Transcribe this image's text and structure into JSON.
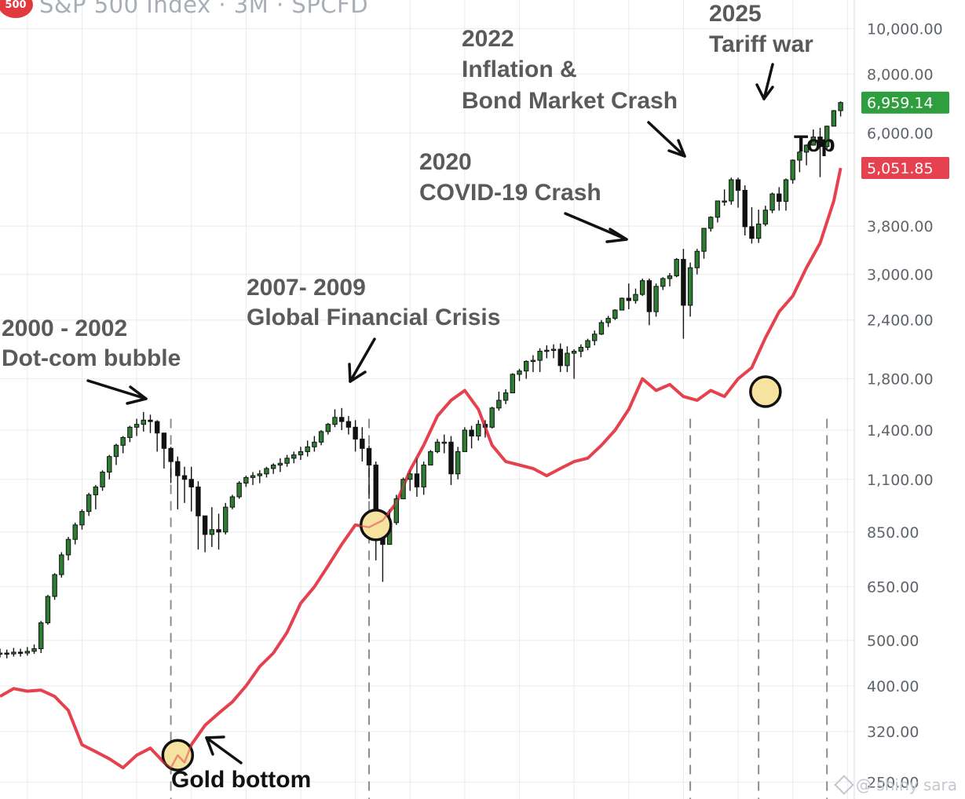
{
  "header": {
    "logo_text": "500",
    "title": "S&P 500 Index · 3M · SPCFD"
  },
  "watermark": "@ shiny sara",
  "colors": {
    "up": "#2e7d32",
    "down": "#111111",
    "gold": "#e5414e",
    "grid": "#e9ebee",
    "axis_text": "#5f646b",
    "annotation_text": "#5a5a5a",
    "price_badge": "#2e9e3e",
    "gold_badge": "#e5414e",
    "circle_fill": "#f7e3a0"
  },
  "annotations": {
    "dotcom": {
      "line1": "2000 - 2002",
      "line2": "Dot-com bubble"
    },
    "gfc": {
      "line1": "2007- 2009",
      "line2": "Global Financial Crisis"
    },
    "covid": {
      "line1": "2020",
      "line2": "COVID-19 Crash"
    },
    "inflation": {
      "line1": "2022",
      "line2": "Inflation &",
      "line3": "Bond Market Crash"
    },
    "tariff": {
      "line1": "2025",
      "line2": "Tariff war"
    },
    "top": "Top",
    "gold_bottom": "Gold bottom"
  },
  "chart_data": {
    "type": "line",
    "title": "S&P 500 Index · 3M · SPCFD",
    "xlabel": "",
    "ylabel": "",
    "y_scale": "log",
    "ylim": [
      230,
      11500
    ],
    "y_ticks": [
      10000,
      8000,
      6000,
      3800,
      3000,
      2400,
      1800,
      1400,
      1100,
      850,
      650,
      500,
      400,
      320,
      250
    ],
    "y_tick_labels": [
      "10,000.00",
      "8,000.00",
      "6,000.00",
      "3,800.00",
      "3,000.00",
      "2,400.00",
      "1,800.00",
      "1,400.00",
      "1,100.00",
      "850.00",
      "650.00",
      "500.00",
      "400.00",
      "320.00",
      "250.00"
    ],
    "last_values": {
      "sp500": "6,959.14",
      "gold_ratio": "5,051.85"
    },
    "grid": true,
    "series": [
      {
        "style": "candlestick",
        "x": [
          1995.0,
          1995.25,
          1995.5,
          1995.75,
          1996.0,
          1996.25,
          1996.5,
          1996.75,
          1997.0,
          1997.25,
          1997.5,
          1997.75,
          1998.0,
          1998.25,
          1998.5,
          1998.75,
          1999.0,
          1999.25,
          1999.5,
          1999.75,
          2000.0,
          2000.25,
          2000.5,
          2000.75,
          2001.0,
          2001.25,
          2001.5,
          2001.75,
          2002.0,
          2002.25,
          2002.5,
          2002.75,
          2003.0,
          2003.25,
          2003.5,
          2003.75,
          2004.0,
          2004.25,
          2004.5,
          2004.75,
          2005.0,
          2005.25,
          2005.5,
          2005.75,
          2006.0,
          2006.25,
          2006.5,
          2006.75,
          2007.0,
          2007.25,
          2007.5,
          2007.75,
          2008.0,
          2008.25,
          2008.5,
          2008.75,
          2009.0,
          2009.25,
          2009.5,
          2009.75,
          2010.0,
          2010.25,
          2010.5,
          2010.75,
          2011.0,
          2011.25,
          2011.5,
          2011.75,
          2012.0,
          2012.25,
          2012.5,
          2012.75,
          2013.0,
          2013.25,
          2013.5,
          2013.75,
          2014.0,
          2014.25,
          2014.5,
          2014.75,
          2015.0,
          2015.25,
          2015.5,
          2015.75,
          2016.0,
          2016.25,
          2016.5,
          2016.75,
          2017.0,
          2017.25,
          2017.5,
          2017.75,
          2018.0,
          2018.25,
          2018.5,
          2018.75,
          2019.0,
          2019.25,
          2019.5,
          2019.75,
          2020.0,
          2020.25,
          2020.5,
          2020.75,
          2021.0,
          2021.25,
          2021.5,
          2021.75,
          2022.0,
          2022.25,
          2022.5,
          2022.75,
          2023.0,
          2023.25,
          2023.5,
          2023.75,
          2024.0,
          2024.25,
          2024.5,
          2024.75,
          2025.0,
          2025.25,
          2025.5,
          2025.75
        ],
        "close": [
          470,
          468,
          472,
          470,
          474,
          480,
          545,
          620,
          690,
          760,
          820,
          880,
          940,
          1020,
          1060,
          1140,
          1230,
          1300,
          1350,
          1420,
          1440,
          1470,
          1460,
          1380,
          1280,
          1200,
          1120,
          1100,
          1060,
          920,
          840,
          860,
          850,
          960,
          1010,
          1080,
          1110,
          1120,
          1130,
          1160,
          1180,
          1190,
          1220,
          1240,
          1260,
          1290,
          1320,
          1390,
          1440,
          1490,
          1460,
          1420,
          1340,
          1280,
          1180,
          900,
          800,
          890,
          1000,
          1100,
          1130,
          1060,
          1180,
          1260,
          1320,
          1320,
          1130,
          1260,
          1400,
          1360,
          1440,
          1420,
          1560,
          1620,
          1680,
          1840,
          1870,
          1960,
          1970,
          2060,
          2070,
          2080,
          1920,
          2040,
          2060,
          2100,
          2170,
          2240,
          2370,
          2420,
          2520,
          2670,
          2640,
          2720,
          2910,
          2500,
          2830,
          2940,
          2980,
          3230,
          2580,
          3100,
          3360,
          3760,
          3970,
          4300,
          4300,
          4770,
          4530,
          3790,
          3580,
          3840,
          4110,
          4450,
          4290,
          4770,
          5250,
          5460,
          5650,
          5880,
          5610,
          6200,
          6690,
          6960
        ],
        "low": [
          460,
          458,
          462,
          462,
          464,
          468,
          470,
          540,
          610,
          680,
          740,
          800,
          860,
          920,
          950,
          1040,
          1100,
          1180,
          1250,
          1320,
          1360,
          1390,
          1380,
          1260,
          1160,
          1080,
          950,
          980,
          940,
          780,
          770,
          790,
          780,
          840,
          950,
          1000,
          1060,
          1070,
          1080,
          1110,
          1130,
          1140,
          1170,
          1190,
          1210,
          1230,
          1260,
          1300,
          1370,
          1420,
          1400,
          1370,
          1260,
          1200,
          1000,
          740,
          666,
          800,
          880,
          1000,
          1040,
          1010,
          1020,
          1180,
          1250,
          1250,
          1070,
          1100,
          1260,
          1280,
          1330,
          1350,
          1410,
          1540,
          1590,
          1690,
          1780,
          1800,
          1860,
          1860,
          1990,
          1990,
          1860,
          1860,
          1800,
          2000,
          2070,
          2120,
          2230,
          2320,
          2400,
          2520,
          2530,
          2600,
          2700,
          2340,
          2440,
          2780,
          2830,
          2960,
          2190,
          2440,
          3000,
          3240,
          3700,
          3870,
          4200,
          4220,
          4160,
          3630,
          3490,
          3500,
          3800,
          4050,
          4100,
          4100,
          4680,
          4950,
          5120,
          5700,
          4830,
          5500,
          6200,
          6500
        ],
        "high": [
          480,
          478,
          482,
          480,
          484,
          490,
          550,
          625,
          695,
          770,
          830,
          890,
          950,
          1030,
          1070,
          1150,
          1240,
          1310,
          1360,
          1430,
          1480,
          1530,
          1510,
          1470,
          1380,
          1290,
          1230,
          1170,
          1170,
          1090,
          920,
          960,
          930,
          980,
          1020,
          1090,
          1120,
          1140,
          1150,
          1170,
          1190,
          1220,
          1240,
          1260,
          1290,
          1330,
          1360,
          1400,
          1450,
          1550,
          1560,
          1500,
          1470,
          1420,
          1300,
          1200,
          930,
          950,
          1020,
          1110,
          1150,
          1220,
          1200,
          1270,
          1340,
          1370,
          1360,
          1290,
          1420,
          1430,
          1470,
          1470,
          1570,
          1690,
          1710,
          1850,
          1890,
          1970,
          2020,
          2090,
          2120,
          2130,
          2140,
          2110,
          2080,
          2130,
          2190,
          2280,
          2400,
          2450,
          2530,
          2680,
          2870,
          2800,
          2940,
          2940,
          2870,
          2960,
          3020,
          3250,
          3400,
          3180,
          3400,
          3760,
          3990,
          4240,
          4550,
          4820,
          4820,
          4640,
          4170,
          4120,
          4200,
          4480,
          4600,
          4800,
          5270,
          5500,
          5670,
          6100,
          6150,
          6220,
          6710,
          7000
        ]
      },
      {
        "style": "line",
        "x": [
          1995.0,
          1995.5,
          1996.0,
          1996.5,
          1997.0,
          1997.5,
          1998.0,
          1998.5,
          1999.0,
          1999.5,
          2000.0,
          2000.5,
          2001.0,
          2001.25,
          2001.5,
          2001.75,
          2002.0,
          2002.5,
          2003.0,
          2003.5,
          2004.0,
          2004.5,
          2005.0,
          2005.5,
          2006.0,
          2006.5,
          2007.0,
          2007.5,
          2008.0,
          2008.5,
          2009.0,
          2009.5,
          2010.0,
          2010.5,
          2011.0,
          2011.5,
          2012.0,
          2012.5,
          2013.0,
          2013.5,
          2014.0,
          2014.5,
          2015.0,
          2015.5,
          2016.0,
          2016.5,
          2017.0,
          2017.5,
          2018.0,
          2018.5,
          2019.0,
          2019.5,
          2020.0,
          2020.5,
          2021.0,
          2021.5,
          2022.0,
          2022.5,
          2023.0,
          2023.5,
          2024.0,
          2024.5,
          2025.0,
          2025.5,
          2025.75
        ],
        "values": [
          380,
          395,
          390,
          392,
          380,
          355,
          300,
          290,
          280,
          268,
          285,
          295,
          275,
          268,
          285,
          275,
          300,
          330,
          350,
          370,
          400,
          440,
          470,
          520,
          600,
          650,
          720,
          800,
          880,
          870,
          900,
          980,
          1150,
          1300,
          1500,
          1620,
          1700,
          1550,
          1300,
          1200,
          1180,
          1160,
          1120,
          1160,
          1200,
          1220,
          1300,
          1400,
          1550,
          1800,
          1700,
          1750,
          1650,
          1620,
          1700,
          1650,
          1800,
          1900,
          2200,
          2500,
          2700,
          3100,
          3500,
          4300,
          5051.85
        ]
      }
    ]
  }
}
